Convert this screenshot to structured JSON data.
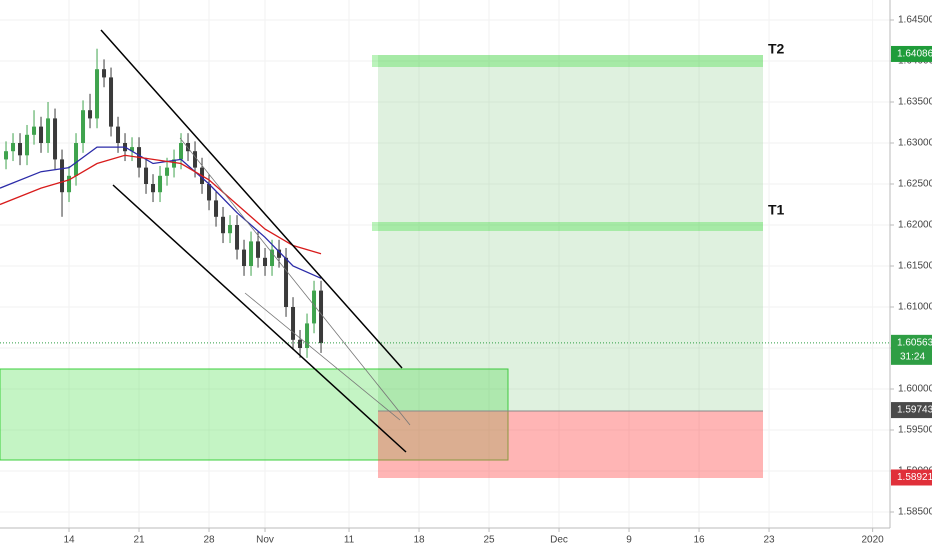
{
  "chart_data": {
    "type": "candlestick",
    "xlim": [
      -4.93,
      58.64
    ],
    "ylim": [
      1.58305,
      1.64744
    ],
    "xticks": [
      {
        "value": 0,
        "label": "14"
      },
      {
        "value": 5,
        "label": "21"
      },
      {
        "value": 10,
        "label": "28"
      },
      {
        "value": 14,
        "label": "Nov"
      },
      {
        "value": 20,
        "label": "11"
      },
      {
        "value": 25,
        "label": "18"
      },
      {
        "value": 30,
        "label": "25"
      },
      {
        "value": 35,
        "label": "Dec"
      },
      {
        "value": 40,
        "label": "9"
      },
      {
        "value": 45,
        "label": "16"
      },
      {
        "value": 50,
        "label": "23"
      },
      {
        "value": 57.4,
        "label": "2020"
      }
    ],
    "yticks": [
      {
        "value": 1.645,
        "label": "1.64500"
      },
      {
        "value": 1.64,
        "label": "1.64000"
      },
      {
        "value": 1.635,
        "label": "1.63500"
      },
      {
        "value": 1.63,
        "label": "1.63000"
      },
      {
        "value": 1.625,
        "label": "1.62500"
      },
      {
        "value": 1.62,
        "label": "1.62000"
      },
      {
        "value": 1.615,
        "label": "1.61500"
      },
      {
        "value": 1.61,
        "label": "1.61000"
      },
      {
        "value": 1.605,
        "label": "1.60500"
      },
      {
        "value": 1.6,
        "label": "1.60000"
      },
      {
        "value": 1.595,
        "label": "1.59500"
      },
      {
        "value": 1.59,
        "label": "1.59000"
      },
      {
        "value": 1.585,
        "label": "1.58500"
      }
    ],
    "up_color": "#3fa34d",
    "down_color": "#3a3a3a",
    "candles": {
      "x": [
        -4.5,
        -4,
        -3.5,
        -3,
        -2.5,
        -2,
        -1.5,
        -1,
        -0.5,
        0,
        0.5,
        1,
        1.5,
        2,
        2.5,
        3,
        3.5,
        4,
        4.5,
        5,
        5.5,
        6,
        6.5,
        7,
        7.5,
        8,
        8.5,
        9,
        9.5,
        10,
        10.5,
        11,
        11.5,
        12,
        12.5,
        13,
        13.5,
        14,
        14.5,
        15,
        15.5,
        16,
        16.5,
        17,
        17.5,
        18
      ],
      "open": [
        1.628,
        1.629,
        1.63,
        1.6285,
        1.631,
        1.632,
        1.63,
        1.633,
        1.628,
        1.624,
        1.626,
        1.63,
        1.634,
        1.633,
        1.639,
        1.638,
        1.632,
        1.63,
        1.629,
        1.6295,
        1.627,
        1.625,
        1.624,
        1.626,
        1.627,
        1.628,
        1.63,
        1.629,
        1.627,
        1.625,
        1.623,
        1.621,
        1.619,
        1.62,
        1.617,
        1.615,
        1.618,
        1.616,
        1.615,
        1.617,
        1.616,
        1.61,
        1.606,
        1.605,
        1.608,
        1.612
      ],
      "high": [
        1.6302,
        1.6312,
        1.6312,
        1.6322,
        1.634,
        1.6332,
        1.635,
        1.6342,
        1.6292,
        1.6272,
        1.6312,
        1.6352,
        1.636,
        1.6415,
        1.6402,
        1.6392,
        1.6332,
        1.6312,
        1.6307,
        1.6307,
        1.6282,
        1.6262,
        1.6272,
        1.6282,
        1.6292,
        1.6312,
        1.6312,
        1.6302,
        1.6282,
        1.6262,
        1.6242,
        1.6222,
        1.6212,
        1.6212,
        1.6182,
        1.6192,
        1.6192,
        1.6172,
        1.6182,
        1.6182,
        1.6172,
        1.6112,
        1.6072,
        1.6092,
        1.6132,
        1.6132
      ],
      "low": [
        1.6268,
        1.6278,
        1.6273,
        1.6273,
        1.6298,
        1.6288,
        1.6288,
        1.6268,
        1.621,
        1.6228,
        1.6248,
        1.6288,
        1.6318,
        1.6318,
        1.6368,
        1.6308,
        1.6288,
        1.6278,
        1.6278,
        1.6258,
        1.6238,
        1.6228,
        1.6228,
        1.6248,
        1.6258,
        1.6268,
        1.6278,
        1.6258,
        1.6238,
        1.6218,
        1.6198,
        1.6178,
        1.6178,
        1.6158,
        1.6138,
        1.6138,
        1.6148,
        1.6138,
        1.6138,
        1.6148,
        1.6088,
        1.6048,
        1.6038,
        1.6038,
        1.6068,
        1.6044
      ],
      "close": [
        1.629,
        1.63,
        1.6285,
        1.631,
        1.632,
        1.63,
        1.633,
        1.628,
        1.624,
        1.626,
        1.63,
        1.634,
        1.633,
        1.639,
        1.638,
        1.632,
        1.63,
        1.629,
        1.6295,
        1.627,
        1.625,
        1.624,
        1.626,
        1.627,
        1.628,
        1.63,
        1.629,
        1.627,
        1.625,
        1.623,
        1.621,
        1.619,
        1.62,
        1.617,
        1.615,
        1.618,
        1.616,
        1.615,
        1.617,
        1.616,
        1.61,
        1.606,
        1.605,
        1.608,
        1.612,
        1.6056
      ]
    },
    "lines": [
      {
        "color": "#2b2ba8",
        "x": [
          -4.93,
          -2,
          0,
          2,
          4,
          6,
          8,
          10,
          12,
          14,
          16,
          18
        ],
        "values": [
          1.6245,
          1.6265,
          1.627,
          1.6295,
          1.6295,
          1.6275,
          1.628,
          1.625,
          1.6215,
          1.6185,
          1.615,
          1.6135
        ]
      },
      {
        "color": "#d81b1b",
        "x": [
          -4.93,
          -2,
          0,
          2,
          4,
          6,
          8,
          10,
          12,
          14,
          16,
          18
        ],
        "values": [
          1.6225,
          1.6245,
          1.6255,
          1.6275,
          1.6285,
          1.628,
          1.6275,
          1.6255,
          1.6225,
          1.6195,
          1.6175,
          1.6165
        ]
      }
    ],
    "current_price": {
      "value": 1.60563,
      "label": "1.60563",
      "color": "#2e9e44"
    },
    "countdown": "31:24",
    "price_labels": [
      {
        "value": 1.64086,
        "label": "1.64086",
        "color": "#1f9c3a"
      },
      {
        "value": 1.59743,
        "label": "1.59743",
        "color": "#4a4a4a"
      },
      {
        "value": 1.58921,
        "label": "1.58921",
        "color": "#e0303a"
      }
    ],
    "annotations": [
      "T2",
      "T1"
    ]
  }
}
